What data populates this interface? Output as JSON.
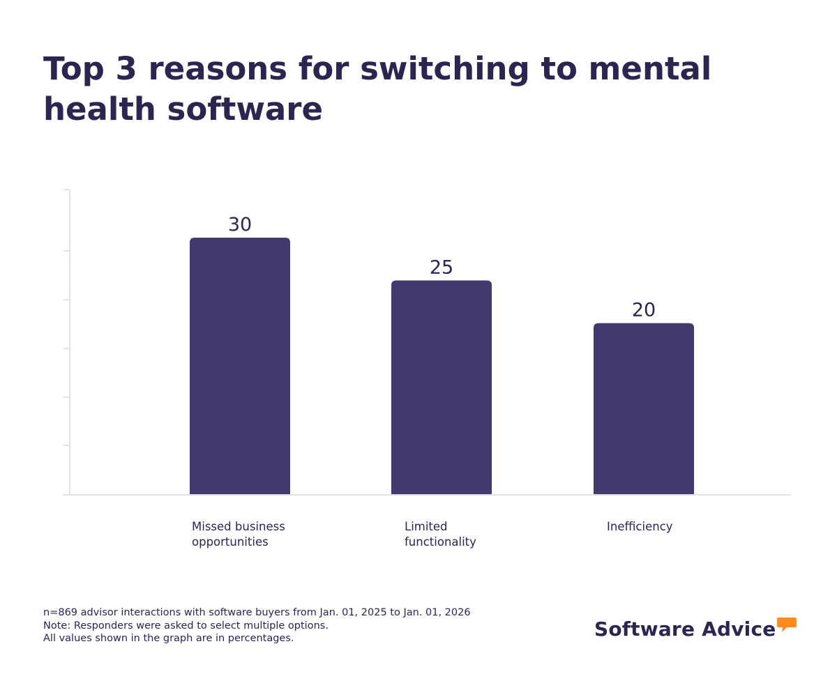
{
  "title": "Top 3 reasons for switching to mental health software",
  "colors": {
    "bar": "#43396e",
    "text": "#2b2550",
    "axis": "#e3e3e6",
    "logo_accent": "#ff8a1f"
  },
  "chart_data": {
    "type": "bar",
    "title": "Top 3 reasons for switching to mental health software",
    "categories": [
      [
        "Missed business",
        "opportunities"
      ],
      [
        "Limited",
        "functionality"
      ],
      [
        "Inefficiency"
      ]
    ],
    "values": [
      30,
      25,
      20
    ],
    "data_labels": [
      "30",
      "25",
      "20"
    ],
    "xlabel": "",
    "ylabel": "",
    "ylim": [
      0,
      35
    ],
    "grid": false,
    "unit": "percent"
  },
  "footnotes": [
    "n=869 advisor interactions with software buyers from Jan. 01, 2025 to Jan. 01, 2026",
    "Note: Responders were asked to select multiple options.",
    "All values shown in the graph are in percentages."
  ],
  "brand": {
    "name": "Software Advice",
    "icon": "speech-bubble-icon"
  }
}
